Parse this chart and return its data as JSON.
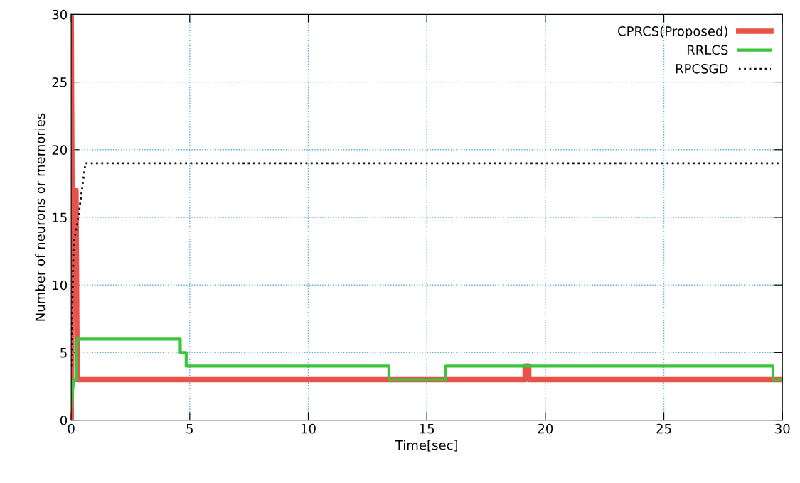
{
  "chart_data": {
    "type": "line",
    "xlabel": "Time[sec]",
    "ylabel": "Number of neurons or memories",
    "xlim": [
      0,
      30
    ],
    "ylim": [
      0,
      30
    ],
    "xticks": [
      0,
      5,
      10,
      15,
      20,
      25,
      30
    ],
    "yticks": [
      0,
      5,
      10,
      15,
      20,
      25,
      30
    ],
    "grid": true,
    "legend": "top right",
    "series": [
      {
        "name": "CPRCS(Proposed)",
        "color": "#e8524a",
        "line_style": "solid",
        "x": [
          0,
          0,
          0.05,
          0.12,
          0.2,
          0.25,
          19.15,
          19.15,
          19.3,
          19.3,
          30
        ],
        "values": [
          0,
          30,
          10,
          17,
          17,
          3,
          3,
          4,
          4,
          3,
          3
        ]
      },
      {
        "name": "RRLCS",
        "color": "#3cc43c",
        "line_style": "solid",
        "x": [
          0,
          0.1,
          0.2,
          0.25,
          4.6,
          4.6,
          4.85,
          4.85,
          13.4,
          13.4,
          15.8,
          15.8,
          29.6,
          29.6,
          30
        ],
        "values": [
          1,
          3,
          3,
          6,
          6,
          5,
          5,
          4,
          4,
          3,
          3,
          4,
          4,
          3,
          3
        ]
      },
      {
        "name": "RPCSGD",
        "color": "#111111",
        "line_style": "dotted",
        "x": [
          0,
          0.1,
          0.3,
          0.45,
          0.6,
          30
        ],
        "values": [
          4,
          13,
          15,
          17,
          19,
          19
        ]
      }
    ]
  }
}
